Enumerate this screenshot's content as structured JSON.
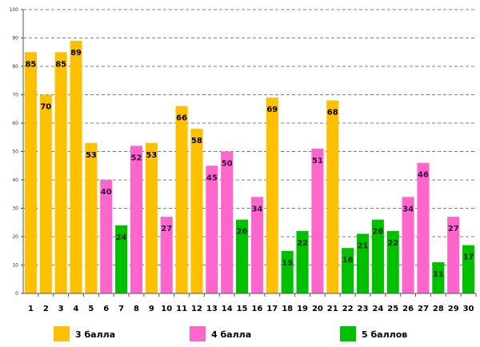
{
  "chart_data": {
    "type": "bar",
    "title": "",
    "xlabel": "",
    "ylabel": "",
    "ylim": [
      0,
      100
    ],
    "yticks": [
      0,
      10,
      20,
      30,
      40,
      50,
      60,
      70,
      80,
      90,
      100
    ],
    "grid": true,
    "legend_position": "bottom",
    "categories": [
      "1",
      "2",
      "3",
      "4",
      "5",
      "6",
      "7",
      "8",
      "9",
      "10",
      "11",
      "12",
      "13",
      "14",
      "15",
      "16",
      "17",
      "18",
      "19",
      "20",
      "21",
      "22",
      "23",
      "24",
      "25",
      "26",
      "27",
      "28",
      "29",
      "30"
    ],
    "values": [
      85,
      70,
      85,
      89,
      53,
      40,
      24,
      52,
      53,
      27,
      66,
      58,
      45,
      50,
      26,
      34,
      69,
      15,
      22,
      51,
      68,
      16,
      21,
      26,
      22,
      34,
      46,
      11,
      27,
      17
    ],
    "groups": [
      3,
      3,
      3,
      3,
      3,
      4,
      5,
      4,
      3,
      4,
      3,
      3,
      4,
      4,
      5,
      4,
      3,
      5,
      5,
      4,
      3,
      5,
      5,
      5,
      5,
      4,
      4,
      5,
      4,
      5
    ],
    "legend": [
      {
        "group": 3,
        "label": "3 балла",
        "color": "#FFC000"
      },
      {
        "group": 4,
        "label": "4 балла",
        "color": "#FF66CC"
      },
      {
        "group": 5,
        "label": "5 баллов",
        "color": "#00C000"
      }
    ]
  }
}
